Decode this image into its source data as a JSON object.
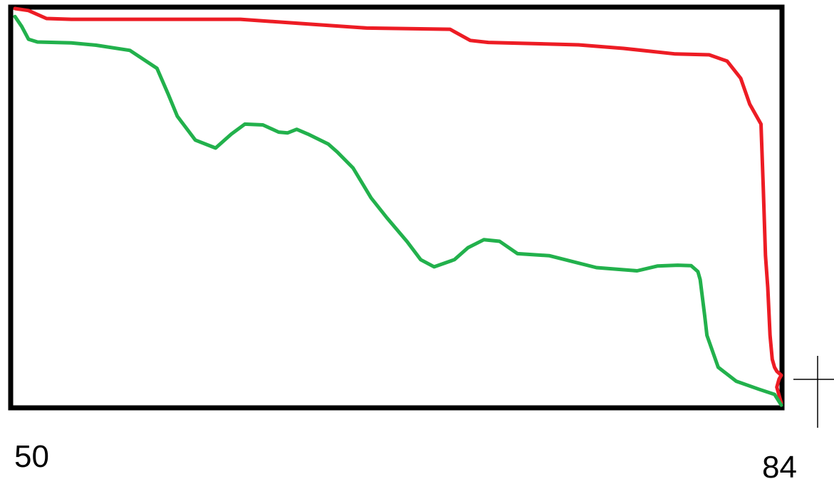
{
  "chart_data": {
    "type": "line",
    "title": "",
    "xlabel": "",
    "ylabel": "",
    "xlim": [
      50,
      84
    ],
    "ylim": [
      0,
      100
    ],
    "x_tick_labels": [
      "50",
      "84"
    ],
    "grid": false,
    "series": [
      {
        "color": "#ed1c24",
        "x": [
          50,
          50.6,
          51.4,
          52.5,
          60,
          63.3,
          65.6,
          69.3,
          70.2,
          71,
          75,
          77,
          79.3,
          80.8,
          81.6,
          82.2,
          82.6,
          83.1,
          83.2,
          83.3,
          83.4,
          83.5,
          83.6,
          83.7,
          83.8,
          84,
          83.9,
          83.8,
          84
        ],
        "y": [
          100,
          99.5,
          97.5,
          97.3,
          97.3,
          96,
          95.1,
          94.8,
          92,
          91.5,
          90.9,
          90,
          88.6,
          88.4,
          86.8,
          82.5,
          76,
          71,
          55,
          38,
          30,
          18,
          12,
          10,
          9,
          8,
          7,
          5,
          1
        ]
      },
      {
        "color": "#22b14c",
        "x": [
          50,
          50.3,
          50.6,
          51,
          52.5,
          53.6,
          55.1,
          56.3,
          56.8,
          57.2,
          58,
          58.9,
          59.6,
          60.2,
          61,
          61.7,
          62.1,
          62.5,
          63,
          63.9,
          64.3,
          65,
          65.8,
          66.5,
          67.4,
          68,
          68.6,
          69.5,
          70.1,
          70.8,
          71.5,
          72.3,
          73.7,
          75.8,
          77.6,
          78.5,
          79.4,
          80,
          80.3,
          80.4,
          80.6,
          80.7,
          81.2,
          82,
          83,
          83.7,
          84
        ],
        "y": [
          98,
          95.5,
          92.3,
          91.6,
          91.4,
          90.8,
          89.5,
          85,
          78.5,
          73,
          67,
          65,
          68.5,
          71,
          70.8,
          69,
          68.8,
          69.7,
          68.5,
          66,
          64,
          60,
          52.5,
          47.5,
          41.5,
          37,
          35.2,
          37,
          40,
          42,
          41.6,
          38.5,
          38,
          35,
          34.2,
          35.4,
          35.6,
          35.5,
          34,
          32,
          23,
          18,
          10,
          6.5,
          4.5,
          3.2,
          0.5
        ]
      }
    ]
  }
}
